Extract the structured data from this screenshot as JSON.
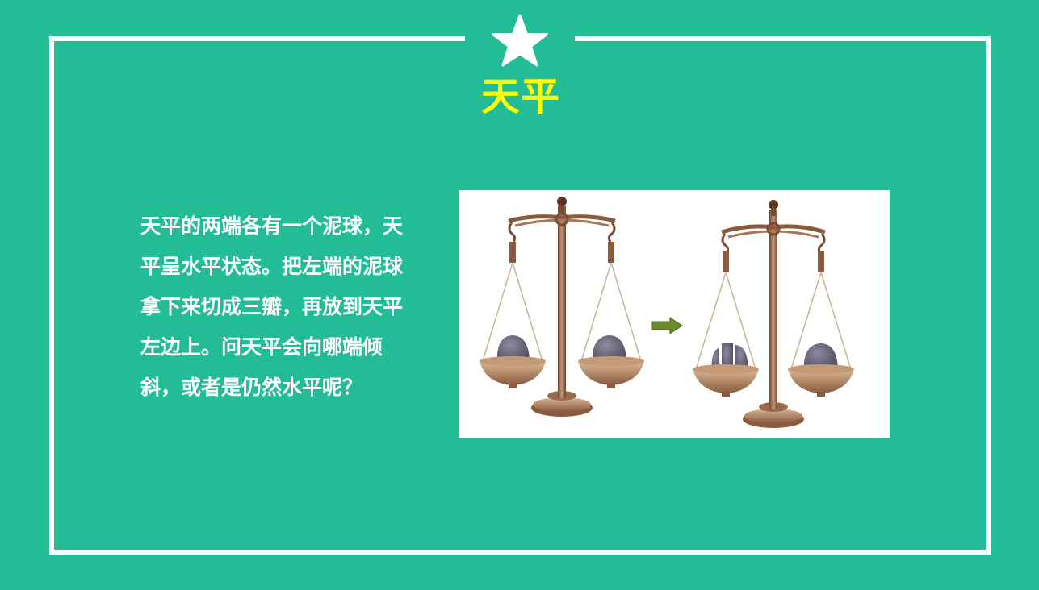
{
  "slide": {
    "title": "天平",
    "body": "天平的两端各有一个泥球，天平呈水平状态。把左端的泥球拿下来切成三瓣，再放到天平左边上。问天平会向哪端倾斜，或者是仍然水平呢？"
  },
  "colors": {
    "background": "#22bd97",
    "frame": "#ffffff",
    "title": "#ffff00",
    "text": "#ffffff",
    "brass": "#9a6a4c",
    "clay": "#5f5a6c",
    "arrow": "#6a8a2e"
  },
  "icons": {
    "star": "star-icon",
    "arrow": "arrow-right-icon"
  }
}
